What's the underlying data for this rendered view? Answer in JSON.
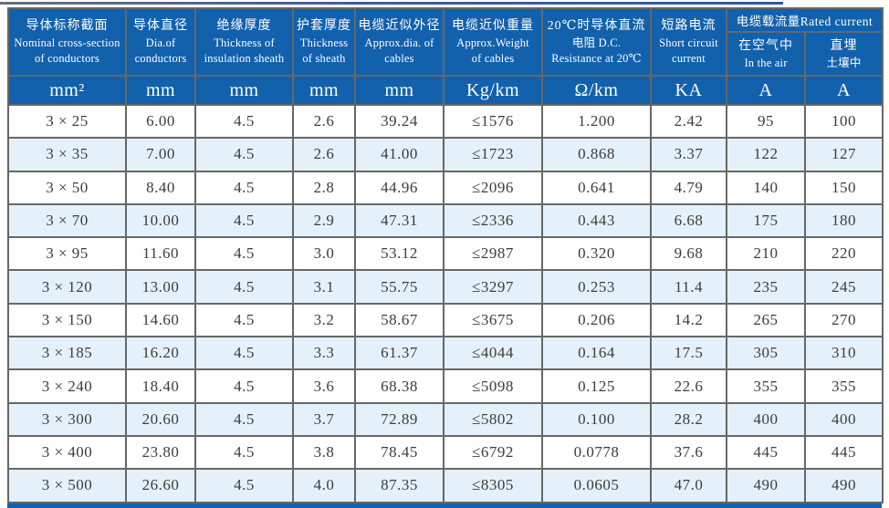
{
  "page": {
    "accent_blue": "#1261ad",
    "row_alt_blue": "#e4f1fa",
    "border_gray": "#676767"
  },
  "table": {
    "header": {
      "main_columns": [
        {
          "zh": "导体标称截面",
          "en1": "Nominal cross-section",
          "en2": "of conductors",
          "unit": "mm²"
        },
        {
          "zh": "导体直径",
          "en1": "Dia.of",
          "en2": "conductors",
          "unit": "mm"
        },
        {
          "zh": "绝缘厚度",
          "en1": "Thickness of",
          "en2": "insulation sheath",
          "unit": "mm"
        },
        {
          "zh": "护套厚度",
          "en1": "Thickness",
          "en2": "of sheath",
          "unit": "mm"
        },
        {
          "zh": "电缆近似外径",
          "en1": "Approx.dia. of",
          "en2": "cables",
          "unit": "mm"
        },
        {
          "zh": "电缆近似重量",
          "en1": "Approx.Weight",
          "en2": "of cables",
          "unit": "Kg/km"
        },
        {
          "zh": "20℃时导体直流",
          "en1": "电阻 D.C.",
          "en2": "Resistance at 20℃",
          "unit": "Ω/km"
        },
        {
          "zh": "短路电流",
          "en1": "Short circuit",
          "en2": "current",
          "unit": "KA"
        }
      ],
      "group": {
        "title": "电缆载流量Rated current",
        "sub_columns": [
          {
            "zh": "在空气中",
            "en": "In the air",
            "unit": "A"
          },
          {
            "zh": "直埋",
            "en": "土壤中",
            "unit": "A"
          }
        ]
      }
    },
    "rows": [
      [
        "3 × 25",
        "6.00",
        "4.5",
        "2.6",
        "39.24",
        "≤1576",
        "1.200",
        "2.42",
        "95",
        "100"
      ],
      [
        "3 × 35",
        "7.00",
        "4.5",
        "2.6",
        "41.00",
        "≤1723",
        "0.868",
        "3.37",
        "122",
        "127"
      ],
      [
        "3 × 50",
        "8.40",
        "4.5",
        "2.8",
        "44.96",
        "≤2096",
        "0.641",
        "4.79",
        "140",
        "150"
      ],
      [
        "3 × 70",
        "10.00",
        "4.5",
        "2.9",
        "47.31",
        "≤2336",
        "0.443",
        "6.68",
        "175",
        "180"
      ],
      [
        "3 × 95",
        "11.60",
        "4.5",
        "3.0",
        "53.12",
        "≤2987",
        "0.320",
        "9.68",
        "210",
        "220"
      ],
      [
        "3 × 120",
        "13.00",
        "4.5",
        "3.1",
        "55.75",
        "≤3297",
        "0.253",
        "11.4",
        "235",
        "245"
      ],
      [
        "3 × 150",
        "14.60",
        "4.5",
        "3.2",
        "58.67",
        "≤3675",
        "0.206",
        "14.2",
        "265",
        "270"
      ],
      [
        "3 × 185",
        "16.20",
        "4.5",
        "3.3",
        "61.37",
        "≤4044",
        "0.164",
        "17.5",
        "305",
        "310"
      ],
      [
        "3 × 240",
        "18.40",
        "4.5",
        "3.6",
        "68.38",
        "≤5098",
        "0.125",
        "22.6",
        "355",
        "355"
      ],
      [
        "3 × 300",
        "20.60",
        "4.5",
        "3.7",
        "72.89",
        "≤5802",
        "0.100",
        "28.2",
        "400",
        "400"
      ],
      [
        "3 × 400",
        "23.80",
        "4.5",
        "3.8",
        "78.45",
        "≤6792",
        "0.0778",
        "37.6",
        "445",
        "445"
      ],
      [
        "3 × 500",
        "26.60",
        "4.5",
        "4.0",
        "87.35",
        "≤8305",
        "0.0605",
        "47.0",
        "490",
        "490"
      ]
    ]
  }
}
